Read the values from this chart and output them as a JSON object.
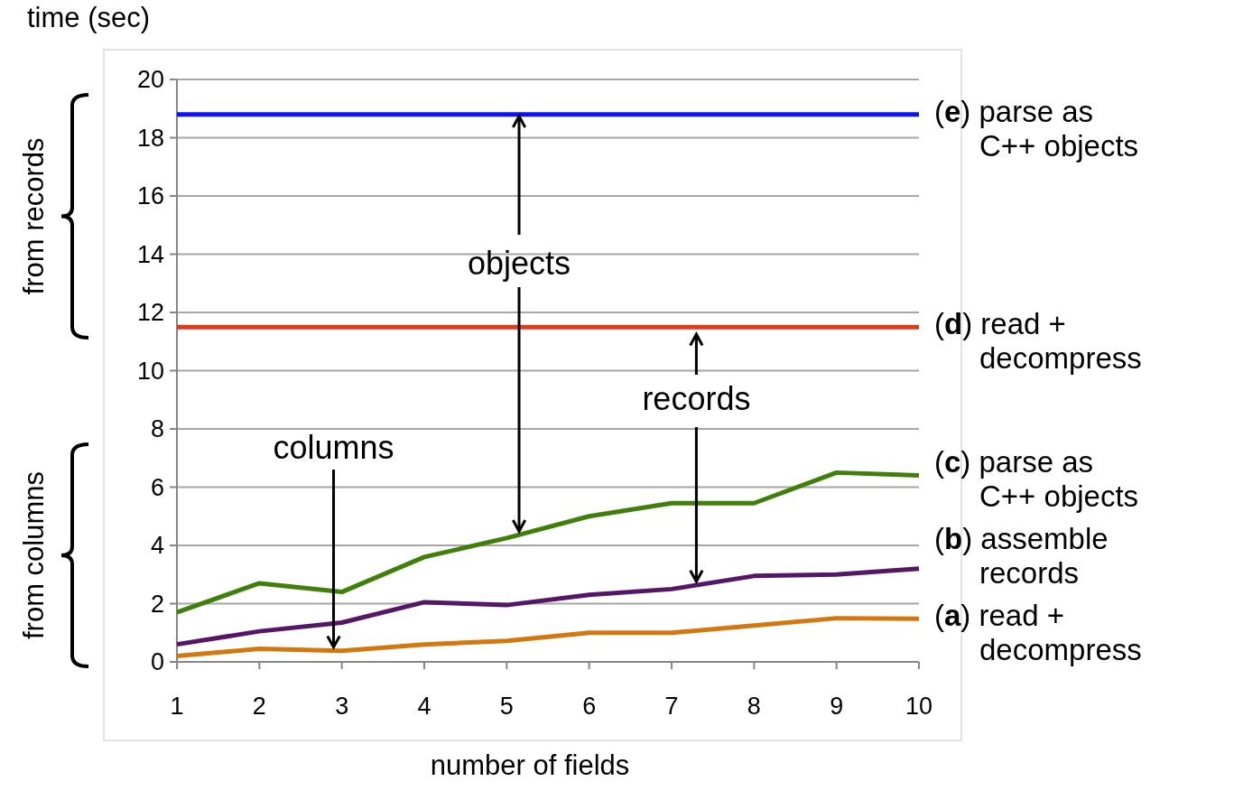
{
  "chart_data": {
    "type": "line",
    "ylabel": "time (sec)",
    "xlabel": "number of fields",
    "x": [
      1,
      2,
      3,
      4,
      5,
      6,
      7,
      8,
      9,
      10
    ],
    "xlim": [
      1,
      10
    ],
    "xticks": [
      1,
      2,
      3,
      4,
      5,
      6,
      7,
      8,
      9,
      10
    ],
    "ylim": [
      0,
      20
    ],
    "yticks": [
      0,
      2,
      4,
      6,
      8,
      10,
      12,
      14,
      16,
      18,
      20
    ],
    "grid": "y",
    "line_style": "solid",
    "marker": "none",
    "series": [
      {
        "name": "(e) parse as\nC++ objects",
        "color": "#0a14f5",
        "values": [
          18.8,
          18.8,
          18.8,
          18.8,
          18.8,
          18.8,
          18.8,
          18.8,
          18.8,
          18.8
        ]
      },
      {
        "name": "(d) read +\ndecompress",
        "color": "#dc3c1e",
        "values": [
          11.5,
          11.5,
          11.5,
          11.5,
          11.5,
          11.5,
          11.5,
          11.5,
          11.5,
          11.5
        ]
      },
      {
        "name": "(c) parse as\nC++ objects",
        "color": "#3f7f0a",
        "values": [
          1.7,
          2.7,
          2.4,
          3.6,
          4.25,
          5.0,
          5.45,
          5.45,
          6.5,
          6.4
        ]
      },
      {
        "name": "(b) assemble\nrecords",
        "color": "#561668",
        "values": [
          0.6,
          1.05,
          1.35,
          2.05,
          1.95,
          2.3,
          2.5,
          2.95,
          3.0,
          3.2
        ]
      },
      {
        "name": "(a) read +\ndecompress",
        "color": "#d2780f",
        "values": [
          0.2,
          0.45,
          0.38,
          0.6,
          0.72,
          1.0,
          1.0,
          1.25,
          1.5,
          1.48
        ]
      }
    ],
    "annotations": [
      {
        "text": "objects",
        "x": 5.15,
        "y": 18.8
      },
      {
        "text": "records",
        "x": 7.3,
        "y": 11.5
      },
      {
        "text": "columns",
        "x": 2.9,
        "y": 0.38
      },
      "from records",
      "from columns"
    ]
  }
}
